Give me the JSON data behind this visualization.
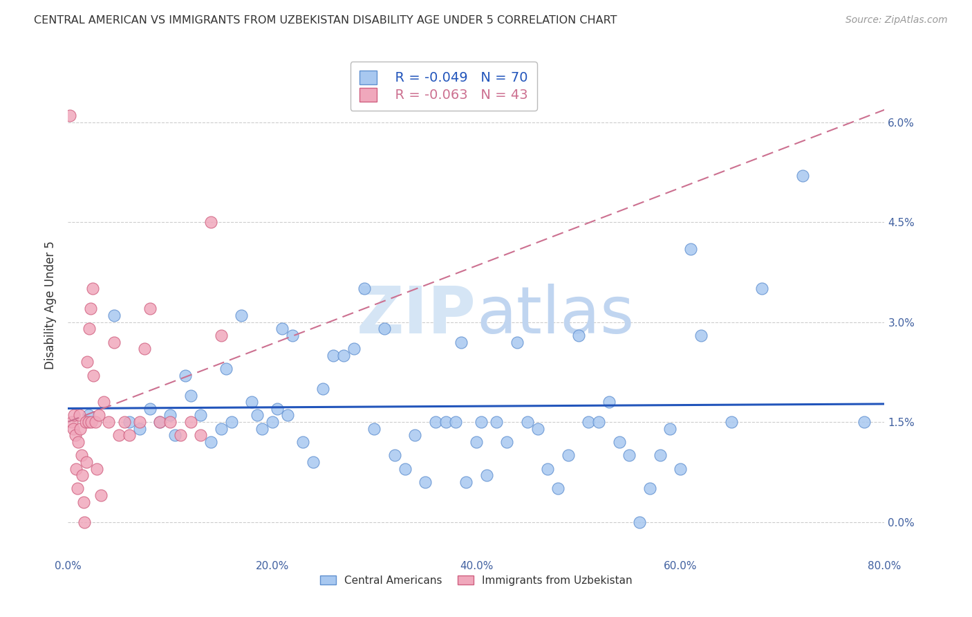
{
  "title": "CENTRAL AMERICAN VS IMMIGRANTS FROM UZBEKISTAN DISABILITY AGE UNDER 5 CORRELATION CHART",
  "source": "Source: ZipAtlas.com",
  "ylabel": "Disability Age Under 5",
  "xlim": [
    0.0,
    80.0
  ],
  "ylim": [
    -0.5,
    7.0
  ],
  "yticks": [
    0.0,
    1.5,
    3.0,
    4.5,
    6.0
  ],
  "xticks": [
    0.0,
    20.0,
    40.0,
    60.0,
    80.0
  ],
  "blue_color": "#A8C8F0",
  "pink_color": "#F0A8BC",
  "blue_edge_color": "#6090D0",
  "pink_edge_color": "#D06080",
  "blue_line_color": "#2255BB",
  "pink_line_color": "#CC7090",
  "legend_blue_r": "R = -0.049",
  "legend_blue_n": "N = 70",
  "legend_pink_r": "R = -0.063",
  "legend_pink_n": "N = 43",
  "blue_scatter_x": [
    2.0,
    4.5,
    6.0,
    7.0,
    8.0,
    9.0,
    10.0,
    10.5,
    11.5,
    12.0,
    13.0,
    14.0,
    15.0,
    15.5,
    16.0,
    17.0,
    18.0,
    18.5,
    19.0,
    20.0,
    20.5,
    21.0,
    21.5,
    22.0,
    23.0,
    24.0,
    25.0,
    26.0,
    27.0,
    28.0,
    29.0,
    30.0,
    31.0,
    32.0,
    33.0,
    34.0,
    35.0,
    36.0,
    37.0,
    38.0,
    38.5,
    39.0,
    40.0,
    40.5,
    41.0,
    42.0,
    43.0,
    44.0,
    45.0,
    46.0,
    47.0,
    48.0,
    49.0,
    50.0,
    51.0,
    52.0,
    53.0,
    54.0,
    55.0,
    56.0,
    57.0,
    58.0,
    59.0,
    60.0,
    61.0,
    62.0,
    65.0,
    68.0,
    72.0,
    78.0
  ],
  "blue_scatter_y": [
    1.6,
    3.1,
    1.5,
    1.4,
    1.7,
    1.5,
    1.6,
    1.3,
    2.2,
    1.9,
    1.6,
    1.2,
    1.4,
    2.3,
    1.5,
    3.1,
    1.8,
    1.6,
    1.4,
    1.5,
    1.7,
    2.9,
    1.6,
    2.8,
    1.2,
    0.9,
    2.0,
    2.5,
    2.5,
    2.6,
    3.5,
    1.4,
    2.9,
    1.0,
    0.8,
    1.3,
    0.6,
    1.5,
    1.5,
    1.5,
    2.7,
    0.6,
    1.2,
    1.5,
    0.7,
    1.5,
    1.2,
    2.7,
    1.5,
    1.4,
    0.8,
    0.5,
    1.0,
    2.8,
    1.5,
    1.5,
    1.8,
    1.2,
    1.0,
    0.0,
    0.5,
    1.0,
    1.4,
    0.8,
    4.1,
    2.8,
    1.5,
    3.5,
    5.2,
    1.5
  ],
  "pink_scatter_x": [
    0.2,
    0.4,
    0.5,
    0.6,
    0.7,
    0.8,
    0.9,
    1.0,
    1.1,
    1.2,
    1.3,
    1.4,
    1.5,
    1.6,
    1.7,
    1.8,
    1.9,
    2.0,
    2.1,
    2.2,
    2.3,
    2.4,
    2.5,
    2.7,
    2.8,
    3.0,
    3.2,
    3.5,
    4.0,
    4.5,
    5.0,
    5.5,
    6.0,
    7.0,
    7.5,
    8.0,
    9.0,
    10.0,
    11.0,
    12.0,
    13.0,
    14.0,
    15.0
  ],
  "pink_scatter_y": [
    6.1,
    1.5,
    1.4,
    1.6,
    1.3,
    0.8,
    0.5,
    1.2,
    1.6,
    1.4,
    1.0,
    0.7,
    0.3,
    0.0,
    1.5,
    0.9,
    2.4,
    1.5,
    2.9,
    3.2,
    1.5,
    3.5,
    2.2,
    1.5,
    0.8,
    1.6,
    0.4,
    1.8,
    1.5,
    2.7,
    1.3,
    1.5,
    1.3,
    1.5,
    2.6,
    3.2,
    1.5,
    1.5,
    1.3,
    1.5,
    1.3,
    4.5,
    2.8
  ],
  "watermark_zip": "ZIP",
  "watermark_atlas": "atlas",
  "watermark_color": "#D0DFF5",
  "bg_color": "#FFFFFF",
  "grid_color": "#CCCCCC",
  "title_color": "#333333",
  "tick_label_color": "#4060A0",
  "source_color": "#999999"
}
